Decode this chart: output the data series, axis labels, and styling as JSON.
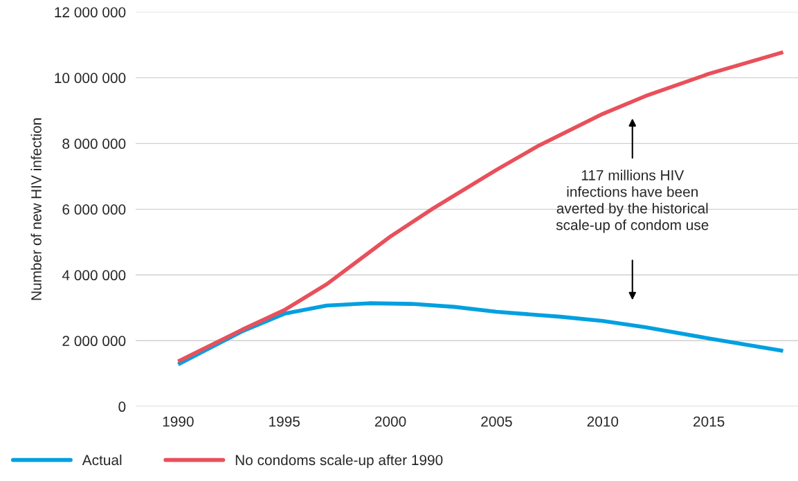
{
  "chart_data": {
    "type": "line",
    "ylabel": "Number of new HIV infection",
    "series": [
      {
        "name": "Actual",
        "color": "#00a0e0",
        "x": [
          1990,
          1993,
          1995,
          1997,
          1999,
          2001,
          2003,
          2005,
          2008,
          2010,
          2012,
          2015,
          2018.5
        ],
        "values": [
          1280000,
          2280000,
          2820000,
          3070000,
          3140000,
          3120000,
          3030000,
          2880000,
          2730000,
          2600000,
          2410000,
          2070000,
          1690000
        ]
      },
      {
        "name": "No condoms scale-up after 1990",
        "color": "#e8505b",
        "x": [
          1990,
          1993,
          1995,
          1997,
          2000,
          2002,
          2005,
          2007,
          2010,
          2012,
          2015,
          2018.5
        ],
        "values": [
          1370000,
          2330000,
          2930000,
          3720000,
          5170000,
          6020000,
          7200000,
          7940000,
          8900000,
          9440000,
          10120000,
          10780000
        ]
      }
    ],
    "xlim": [
      1988,
      2019.2
    ],
    "xticks": [
      1990,
      1995,
      2000,
      2005,
      2010,
      2015
    ],
    "ylim": [
      0,
      12000000
    ],
    "yticks": [
      {
        "value": 0,
        "label": "0"
      },
      {
        "value": 2000000,
        "label": "2 000 000"
      },
      {
        "value": 4000000,
        "label": "4 000 000"
      },
      {
        "value": 6000000,
        "label": "6 000 000"
      },
      {
        "value": 8000000,
        "label": "8 000 000"
      },
      {
        "value": 10000000,
        "label": "10 000 000"
      },
      {
        "value": 12000000,
        "label": "12 000 000"
      }
    ],
    "grid": "y",
    "legend": "bottom",
    "marker": "none",
    "line_style": "solid",
    "annotations": [
      "117 millions HIV\ninfections have been\naverted by the historical\nscale-up of condom use"
    ]
  }
}
